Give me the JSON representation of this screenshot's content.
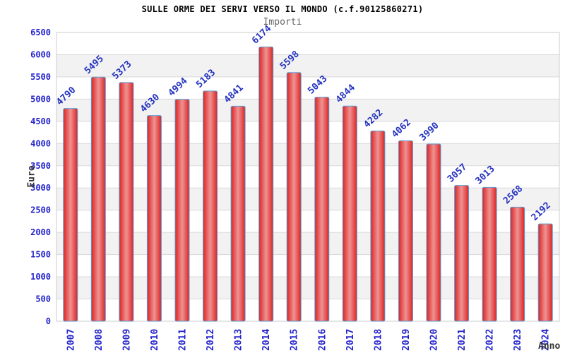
{
  "chart_data": {
    "type": "bar",
    "title": "SULLE ORME DEI SERVI VERSO IL MONDO (c.f.90125860271)",
    "subtitle": "Importi",
    "xlabel": "Anno",
    "ylabel": "Euro",
    "categories": [
      "2007",
      "2008",
      "2009",
      "2010",
      "2011",
      "2012",
      "2013",
      "2014",
      "2015",
      "2016",
      "2017",
      "2018",
      "2019",
      "2020",
      "2021",
      "2022",
      "2023",
      "2024"
    ],
    "values": [
      4790,
      5495,
      5373,
      4630,
      4994,
      5183,
      4841,
      6174,
      5598,
      5043,
      4844,
      4282,
      4062,
      3990,
      3057,
      3013,
      2568,
      2192
    ],
    "ylim": [
      0,
      6500
    ],
    "ytick_step": 500,
    "legend": "none",
    "grid": "horizontal-bands",
    "colors": {
      "bar_edge_red": "#dc2323",
      "bar_center_pink": "#ef9393",
      "bar_border_blue": "#5a9fd4",
      "axis_tick_text": "#2424cc",
      "value_label_text": "#2433c0",
      "band_light": "#ffffff",
      "band_dark": "#f2f2f2",
      "gridline": "#d9d9d9",
      "plot_border": "#cccccc",
      "title_text": "#000000",
      "subtitle_text": "#666666",
      "axis_title_text": "#333333",
      "background": "#ffffff"
    }
  }
}
